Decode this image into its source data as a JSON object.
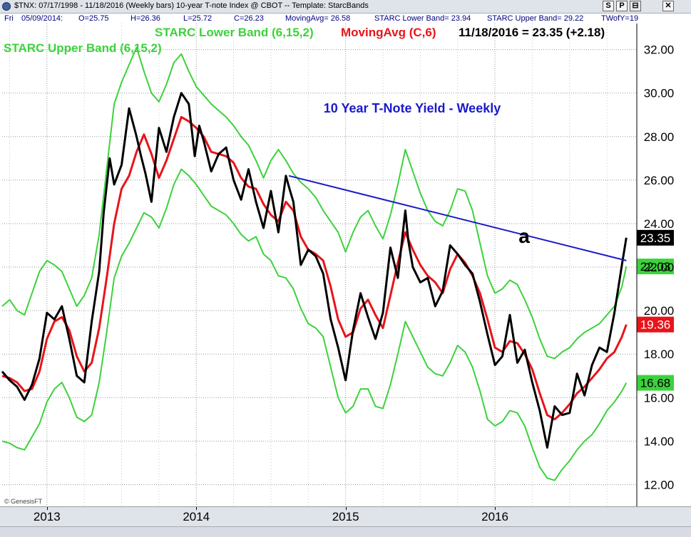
{
  "titlebar": {
    "text": "$TNX: 07/17/1998 - 11/18/2016   (Weekly bars)   10-year T-note Index @ CBOT   --   Template: StarcBands",
    "buttons": [
      "S",
      "P",
      "⊟",
      "✕"
    ]
  },
  "status": {
    "day": "Fri",
    "date": "05/09/2014:",
    "open": "O=25.75",
    "high": "H=26.36",
    "low": "L=25.72",
    "close": "C=26.23",
    "moving_avg": "MovingAvg= 26.58",
    "starc_lower": "STARC Lower Band= 23.94",
    "starc_upper": "STARC Upper Band= 29.22",
    "twofy": "TWofY=19"
  },
  "header": {
    "lower_band_label": "STARC Lower Band (6,15,2)",
    "moving_avg_label": "MovingAvg (C,6)",
    "last_value": "11/18/2016 = 23.35 (+2.18)",
    "upper_band_label": "STARC Upper Band (6,15,2)"
  },
  "colors": {
    "price": "#000000",
    "moving_avg": "#e8141a",
    "bands": "#3cd23c",
    "trendline": "#1a1acc",
    "title": "#1a1acc",
    "grid": "#999999"
  },
  "chart_data": {
    "type": "line",
    "title": "10 Year T-Note Yield - Weekly",
    "annotation": "a",
    "watermark": "© GenesisFT",
    "ylim": [
      11.0,
      33.2
    ],
    "y_ticks": [
      "12.00",
      "14.00",
      "16.00",
      "18.00",
      "20.00",
      "22.00",
      "24.00",
      "26.00",
      "28.00",
      "30.00",
      "32.00"
    ],
    "x_ticks": [
      "2013",
      "2014",
      "2015",
      "2016"
    ],
    "x_tick_years": [
      2013,
      2014,
      2015,
      2016
    ],
    "xlim": [
      2012.7,
      2016.95
    ],
    "grid": true,
    "last_labels": [
      {
        "text": "23.35",
        "value": 23.35,
        "kind": "price"
      },
      {
        "text": "22.03",
        "value": 22.03,
        "kind": "upper"
      },
      {
        "text": "19.36",
        "value": 19.36,
        "kind": "ma"
      },
      {
        "text": "16.68",
        "value": 16.68,
        "kind": "lower"
      }
    ],
    "trendline": {
      "x": [
        2014.62,
        2016.88
      ],
      "y": [
        26.2,
        22.3
      ]
    },
    "series": [
      {
        "name": "Close",
        "x": [
          2012.7,
          2012.75,
          2012.8,
          2012.85,
          2012.9,
          2012.95,
          2013.0,
          2013.05,
          2013.1,
          2013.15,
          2013.2,
          2013.25,
          2013.3,
          2013.35,
          2013.38,
          2013.42,
          2013.45,
          2013.5,
          2013.55,
          2013.6,
          2013.63,
          2013.66,
          2013.7,
          2013.75,
          2013.8,
          2013.85,
          2013.9,
          2013.95,
          2013.99,
          2014.02,
          2014.05,
          2014.1,
          2014.15,
          2014.2,
          2014.25,
          2014.3,
          2014.35,
          2014.4,
          2014.45,
          2014.5,
          2014.55,
          2014.6,
          2014.62,
          2014.65,
          2014.7,
          2014.75,
          2014.8,
          2014.85,
          2014.9,
          2014.95,
          2015.0,
          2015.03,
          2015.05,
          2015.1,
          2015.15,
          2015.2,
          2015.25,
          2015.3,
          2015.35,
          2015.4,
          2015.42,
          2015.45,
          2015.5,
          2015.55,
          2015.6,
          2015.65,
          2015.7,
          2015.75,
          2015.8,
          2015.85,
          2015.9,
          2015.95,
          2016.0,
          2016.05,
          2016.1,
          2016.15,
          2016.2,
          2016.25,
          2016.3,
          2016.35,
          2016.4,
          2016.45,
          2016.5,
          2016.52,
          2016.55,
          2016.6,
          2016.65,
          2016.7,
          2016.75,
          2016.8,
          2016.85,
          2016.88
        ],
        "y": [
          17.2,
          16.8,
          16.5,
          15.9,
          16.6,
          17.8,
          19.9,
          19.6,
          20.2,
          18.7,
          17.0,
          16.7,
          19.5,
          21.8,
          24.5,
          27.0,
          25.8,
          26.7,
          29.3,
          28.0,
          27.1,
          26.3,
          25.0,
          28.4,
          27.3,
          28.9,
          30.0,
          29.5,
          27.1,
          28.5,
          27.8,
          26.4,
          27.2,
          27.5,
          26.0,
          25.1,
          26.5,
          25.0,
          23.8,
          25.5,
          23.6,
          26.2,
          25.7,
          25.0,
          22.1,
          22.8,
          22.5,
          21.7,
          19.6,
          18.3,
          16.8,
          18.2,
          19.1,
          20.8,
          19.7,
          18.7,
          19.9,
          22.9,
          21.5,
          24.6,
          23.2,
          22.0,
          21.3,
          21.5,
          20.2,
          20.9,
          23.0,
          22.6,
          22.1,
          21.7,
          20.4,
          18.9,
          17.5,
          17.9,
          19.8,
          17.6,
          18.2,
          16.7,
          15.4,
          13.7,
          15.6,
          15.2,
          15.3,
          16.0,
          17.1,
          16.1,
          17.5,
          18.3,
          18.1,
          19.9,
          22.1,
          23.35
        ]
      },
      {
        "name": "MovingAvg (C,6)",
        "x": [
          2012.7,
          2012.75,
          2012.8,
          2012.85,
          2012.9,
          2012.95,
          2013.0,
          2013.05,
          2013.1,
          2013.15,
          2013.2,
          2013.25,
          2013.3,
          2013.35,
          2013.4,
          2013.45,
          2013.5,
          2013.55,
          2013.6,
          2013.65,
          2013.7,
          2013.75,
          2013.8,
          2013.85,
          2013.9,
          2013.95,
          2014.0,
          2014.05,
          2014.1,
          2014.15,
          2014.2,
          2014.25,
          2014.3,
          2014.35,
          2014.4,
          2014.45,
          2014.5,
          2014.55,
          2014.6,
          2014.65,
          2014.7,
          2014.75,
          2014.8,
          2014.85,
          2014.9,
          2014.95,
          2015.0,
          2015.05,
          2015.1,
          2015.15,
          2015.2,
          2015.25,
          2015.3,
          2015.35,
          2015.4,
          2015.45,
          2015.5,
          2015.55,
          2015.6,
          2015.65,
          2015.7,
          2015.75,
          2015.8,
          2015.85,
          2015.9,
          2015.95,
          2016.0,
          2016.05,
          2016.1,
          2016.15,
          2016.2,
          2016.25,
          2016.3,
          2016.35,
          2016.4,
          2016.45,
          2016.5,
          2016.55,
          2016.6,
          2016.65,
          2016.7,
          2016.75,
          2016.8,
          2016.85,
          2016.88
        ],
        "y": [
          17.0,
          16.9,
          16.7,
          16.3,
          16.4,
          17.2,
          18.7,
          19.5,
          19.7,
          19.1,
          17.9,
          17.2,
          17.6,
          19.2,
          21.5,
          24.0,
          25.6,
          26.2,
          27.3,
          28.1,
          27.2,
          26.1,
          26.9,
          27.9,
          28.9,
          28.7,
          28.4,
          28.0,
          27.3,
          27.2,
          27.1,
          26.8,
          26.1,
          25.7,
          25.6,
          24.9,
          24.4,
          24.1,
          25.0,
          24.6,
          23.4,
          22.8,
          22.6,
          22.3,
          21.1,
          19.6,
          18.8,
          19.0,
          20.1,
          20.5,
          19.8,
          19.2,
          20.7,
          22.2,
          23.6,
          22.8,
          22.1,
          21.6,
          21.3,
          20.8,
          21.9,
          22.6,
          22.2,
          21.6,
          20.8,
          19.6,
          18.3,
          18.1,
          18.6,
          18.5,
          18.0,
          17.3,
          16.2,
          15.2,
          15.0,
          15.3,
          15.7,
          16.2,
          16.5,
          16.9,
          17.3,
          17.8,
          18.1,
          18.8,
          19.36
        ]
      },
      {
        "name": "STARC Upper Band (6,15,2)",
        "x": [
          2012.7,
          2012.75,
          2012.8,
          2012.85,
          2012.9,
          2012.95,
          2013.0,
          2013.05,
          2013.1,
          2013.15,
          2013.2,
          2013.25,
          2013.3,
          2013.35,
          2013.4,
          2013.45,
          2013.5,
          2013.55,
          2013.6,
          2013.65,
          2013.7,
          2013.75,
          2013.8,
          2013.85,
          2013.9,
          2013.95,
          2014.0,
          2014.05,
          2014.1,
          2014.15,
          2014.2,
          2014.25,
          2014.3,
          2014.35,
          2014.4,
          2014.45,
          2014.5,
          2014.55,
          2014.6,
          2014.65,
          2014.7,
          2014.75,
          2014.8,
          2014.85,
          2014.9,
          2014.95,
          2015.0,
          2015.05,
          2015.1,
          2015.15,
          2015.2,
          2015.25,
          2015.3,
          2015.35,
          2015.4,
          2015.45,
          2015.5,
          2015.55,
          2015.6,
          2015.65,
          2015.7,
          2015.75,
          2015.8,
          2015.85,
          2015.9,
          2015.95,
          2016.0,
          2016.05,
          2016.1,
          2016.15,
          2016.2,
          2016.25,
          2016.3,
          2016.35,
          2016.4,
          2016.45,
          2016.5,
          2016.55,
          2016.6,
          2016.65,
          2016.7,
          2016.75,
          2016.8,
          2016.85,
          2016.88
        ],
        "y": [
          20.2,
          20.5,
          20.0,
          19.8,
          20.8,
          21.8,
          22.3,
          22.1,
          21.8,
          21.0,
          20.2,
          20.7,
          21.5,
          23.5,
          26.5,
          29.5,
          30.5,
          31.3,
          32.1,
          31.0,
          30.0,
          29.6,
          30.4,
          31.4,
          31.8,
          31.0,
          30.3,
          29.9,
          29.5,
          29.2,
          28.9,
          28.5,
          28.0,
          27.6,
          26.9,
          26.1,
          26.9,
          27.4,
          26.9,
          26.3,
          25.9,
          25.6,
          25.2,
          24.6,
          24.1,
          23.6,
          22.7,
          23.6,
          24.3,
          24.6,
          23.9,
          23.3,
          24.4,
          25.8,
          27.4,
          26.4,
          25.4,
          24.6,
          24.1,
          23.9,
          24.6,
          25.6,
          25.5,
          24.6,
          23.1,
          21.6,
          20.8,
          21.0,
          21.4,
          21.2,
          20.5,
          19.7,
          18.7,
          17.9,
          17.8,
          18.1,
          18.3,
          18.7,
          19.0,
          19.2,
          19.4,
          19.8,
          20.2,
          21.1,
          22.03
        ]
      },
      {
        "name": "STARC Lower Band (6,15,2)",
        "x": [
          2012.7,
          2012.75,
          2012.8,
          2012.85,
          2012.9,
          2012.95,
          2013.0,
          2013.05,
          2013.1,
          2013.15,
          2013.2,
          2013.25,
          2013.3,
          2013.35,
          2013.4,
          2013.45,
          2013.5,
          2013.55,
          2013.6,
          2013.65,
          2013.7,
          2013.75,
          2013.8,
          2013.85,
          2013.9,
          2013.95,
          2014.0,
          2014.05,
          2014.1,
          2014.15,
          2014.2,
          2014.25,
          2014.3,
          2014.35,
          2014.4,
          2014.45,
          2014.5,
          2014.55,
          2014.6,
          2014.65,
          2014.7,
          2014.75,
          2014.8,
          2014.85,
          2014.9,
          2014.95,
          2015.0,
          2015.05,
          2015.1,
          2015.15,
          2015.2,
          2015.25,
          2015.3,
          2015.35,
          2015.4,
          2015.45,
          2015.5,
          2015.55,
          2015.6,
          2015.65,
          2015.7,
          2015.75,
          2015.8,
          2015.85,
          2015.9,
          2015.95,
          2016.0,
          2016.05,
          2016.1,
          2016.15,
          2016.2,
          2016.25,
          2016.3,
          2016.35,
          2016.4,
          2016.45,
          2016.5,
          2016.55,
          2016.6,
          2016.65,
          2016.7,
          2016.75,
          2016.8,
          2016.85,
          2016.88
        ],
        "y": [
          14.0,
          13.9,
          13.7,
          13.6,
          14.2,
          14.8,
          15.8,
          16.4,
          16.7,
          16.0,
          15.1,
          14.9,
          15.2,
          16.7,
          19.0,
          21.5,
          22.5,
          23.1,
          23.8,
          24.5,
          24.3,
          23.8,
          24.7,
          25.8,
          26.5,
          26.2,
          25.8,
          25.3,
          24.8,
          24.6,
          24.4,
          24.0,
          23.5,
          23.2,
          23.4,
          22.6,
          22.3,
          21.6,
          21.5,
          21.0,
          20.1,
          19.4,
          19.2,
          18.8,
          17.4,
          16.0,
          15.3,
          15.6,
          16.4,
          16.4,
          15.6,
          15.5,
          16.6,
          18.0,
          19.5,
          18.8,
          18.1,
          17.4,
          17.1,
          17.0,
          17.6,
          18.4,
          18.1,
          17.4,
          16.3,
          15.0,
          14.7,
          14.9,
          15.4,
          15.3,
          14.7,
          13.7,
          12.8,
          12.3,
          12.2,
          12.7,
          13.1,
          13.6,
          14.0,
          14.3,
          14.8,
          15.4,
          15.8,
          16.3,
          16.68
        ]
      }
    ]
  }
}
